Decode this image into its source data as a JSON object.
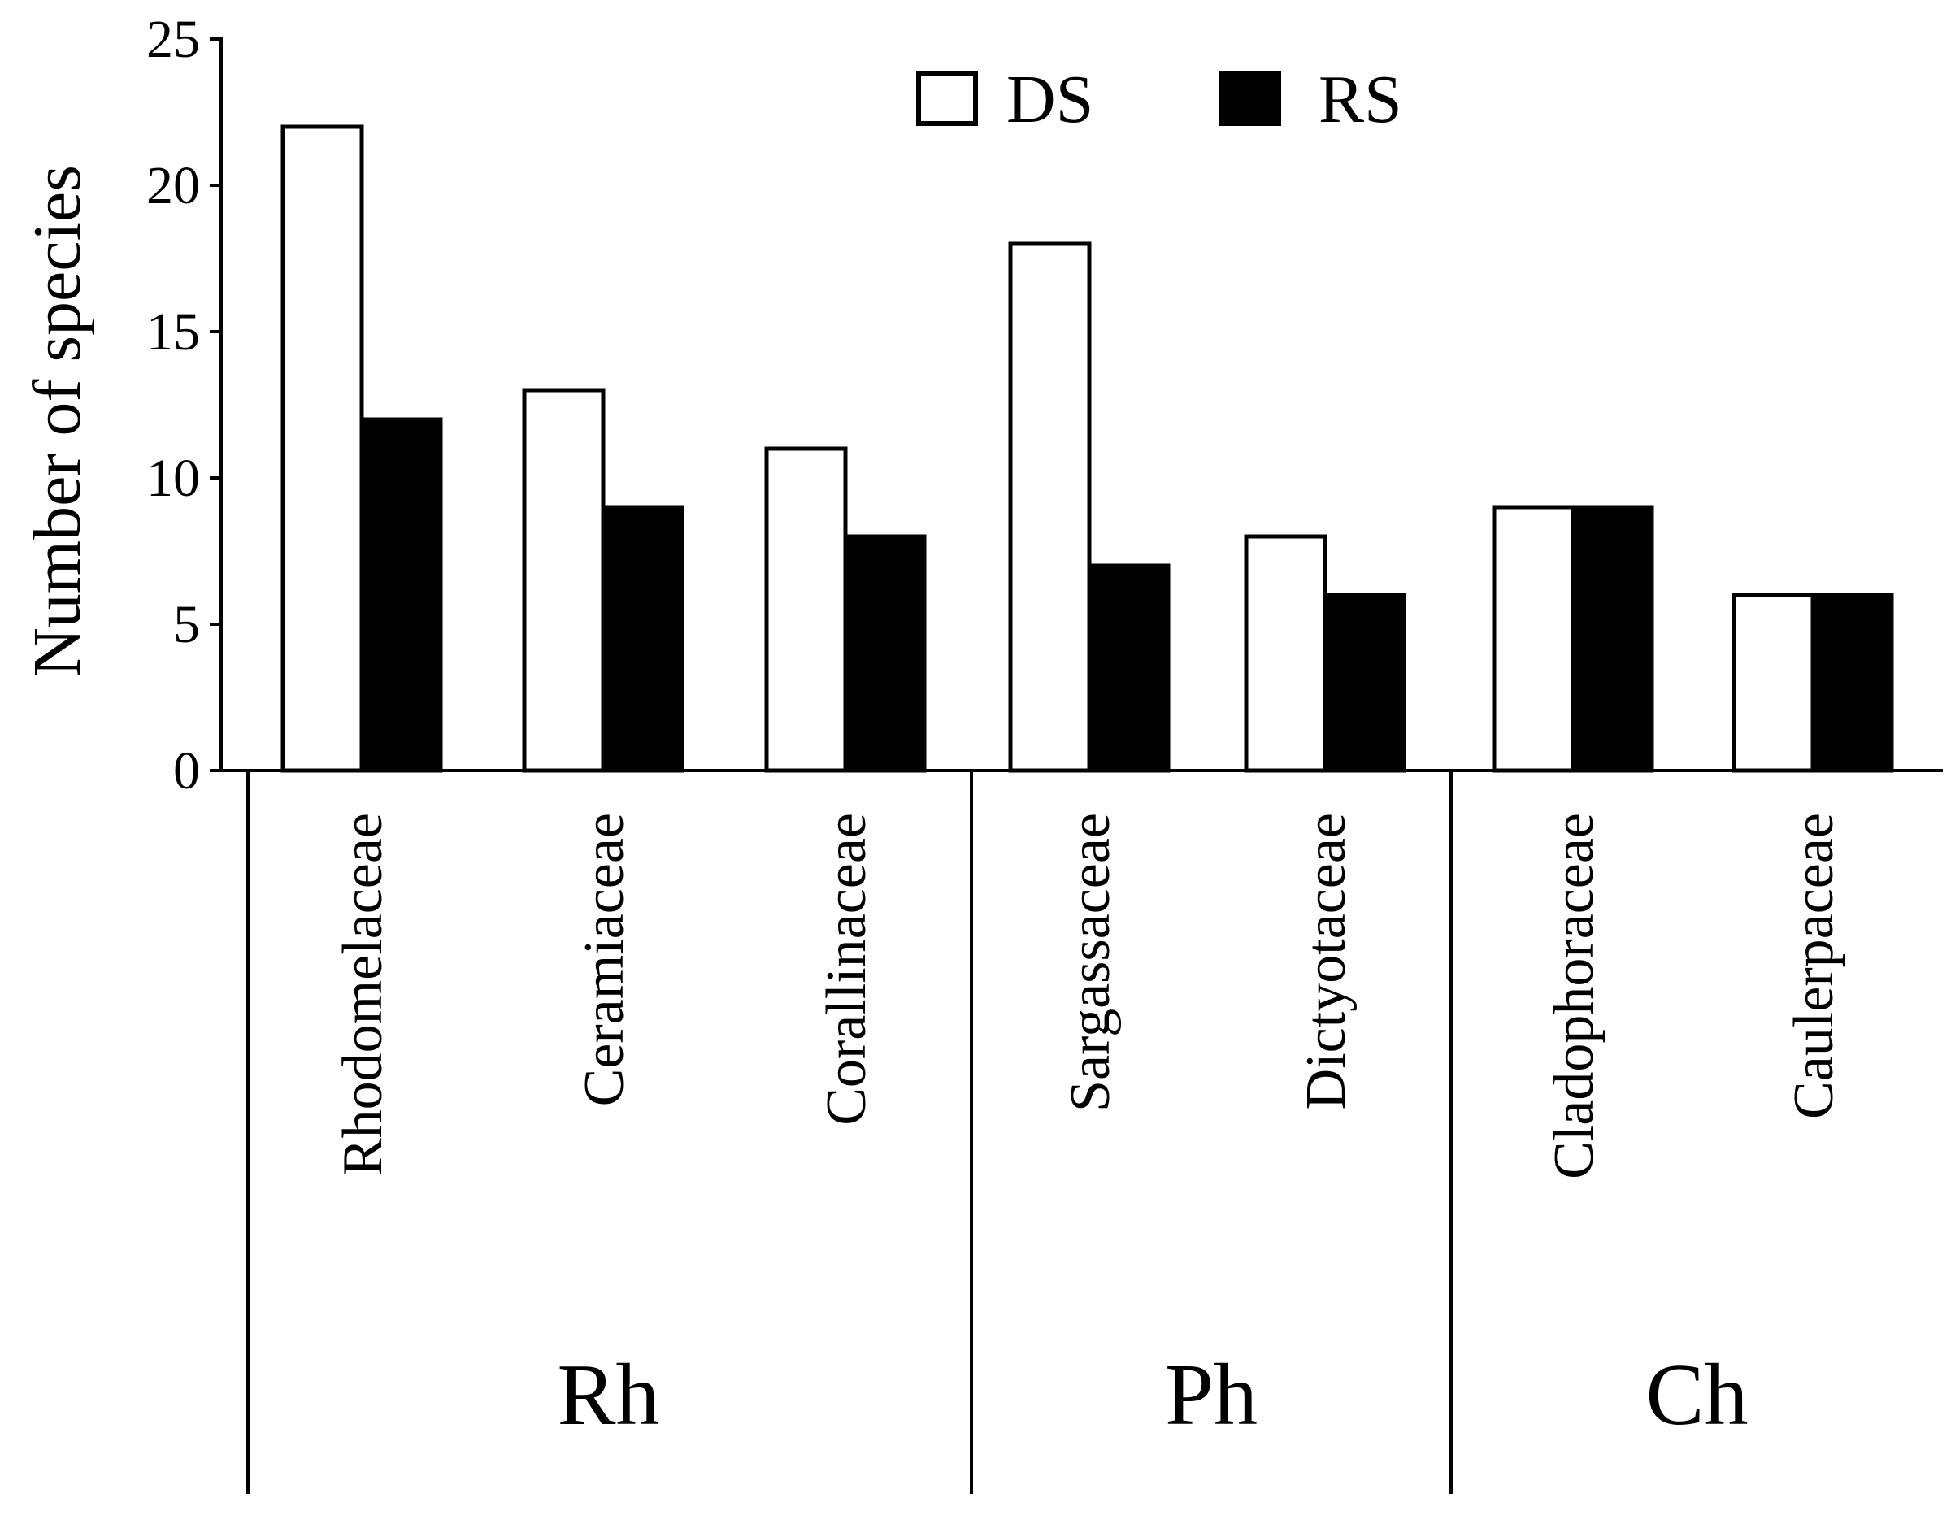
{
  "chart_data": {
    "type": "bar",
    "title": "",
    "xlabel": "",
    "ylabel": "Number of species",
    "ylim": [
      0,
      25
    ],
    "yticks": [
      0,
      5,
      10,
      15,
      20,
      25
    ],
    "grid": false,
    "legend_position": "top-right",
    "categories": [
      "Rhodomelaceae",
      "Ceramiaceae",
      "Corallinaceae",
      "Sargassaceae",
      "Dictyotaceae",
      "Cladophoraceae",
      "Caulerpaceae"
    ],
    "groups": [
      {
        "label": "Rh",
        "categories": [
          "Rhodomelaceae",
          "Ceramiaceae",
          "Corallinaceae"
        ]
      },
      {
        "label": "Ph",
        "categories": [
          "Sargassaceae",
          "Dictyotaceae"
        ]
      },
      {
        "label": "Ch",
        "categories": [
          "Cladophoraceae",
          "Caulerpaceae"
        ]
      }
    ],
    "series": [
      {
        "name": "DS",
        "color": "#ffffff",
        "values": [
          22,
          13,
          11,
          18,
          8,
          9,
          6
        ]
      },
      {
        "name": "RS",
        "color": "#000000",
        "values": [
          12,
          9,
          8,
          7,
          6,
          9,
          6
        ]
      }
    ]
  }
}
